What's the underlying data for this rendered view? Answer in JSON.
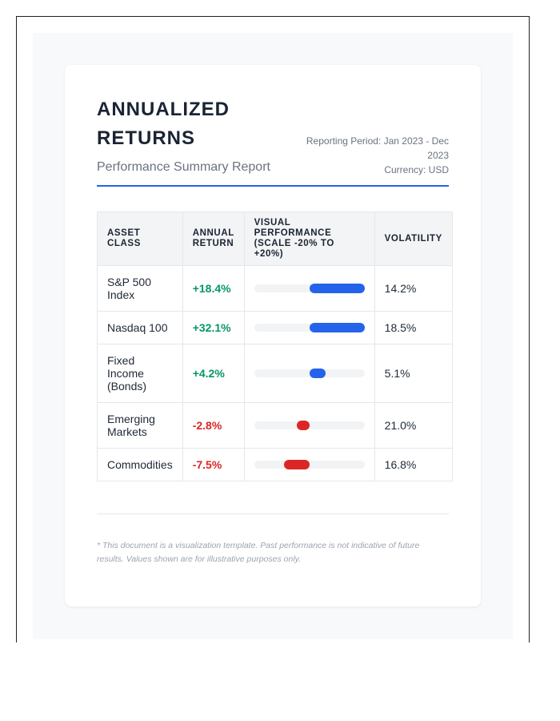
{
  "header": {
    "title": "ANNUALIZED RETURNS",
    "subtitle": "Performance Summary Report",
    "period": "Reporting Period: Jan 2023 - Dec 2023",
    "currency": "Currency: USD"
  },
  "table": {
    "columns": [
      "ASSET CLASS",
      "ANNUAL RETURN",
      "VISUAL PERFORMANCE (SCALE -20% TO +20%)",
      "VOLATILITY"
    ],
    "scale": [
      -20,
      20
    ],
    "rows": [
      {
        "asset": "S&P 500 Index",
        "return": "+18.4%",
        "value": 18.4,
        "volatility": "14.2%"
      },
      {
        "asset": "Nasdaq 100",
        "return": "+32.1%",
        "value": 32.1,
        "volatility": "18.5%"
      },
      {
        "asset": "Fixed Income (Bonds)",
        "return": "+4.2%",
        "value": 4.2,
        "volatility": "5.1%"
      },
      {
        "asset": "Emerging Markets",
        "return": "-2.8%",
        "value": -2.8,
        "volatility": "21.0%"
      },
      {
        "asset": "Commodities",
        "return": "-7.5%",
        "value": -7.5,
        "volatility": "16.8%"
      }
    ]
  },
  "colors": {
    "positive_text": "#059669",
    "negative_text": "#dc2626",
    "positive_bar": "#2563eb",
    "negative_bar": "#dc2626",
    "accent": "#2563eb"
  },
  "footer": {
    "disclaimer": "* This document is a visualization template. Past performance is not indicative of future results. Values shown are for illustrative purposes only."
  }
}
